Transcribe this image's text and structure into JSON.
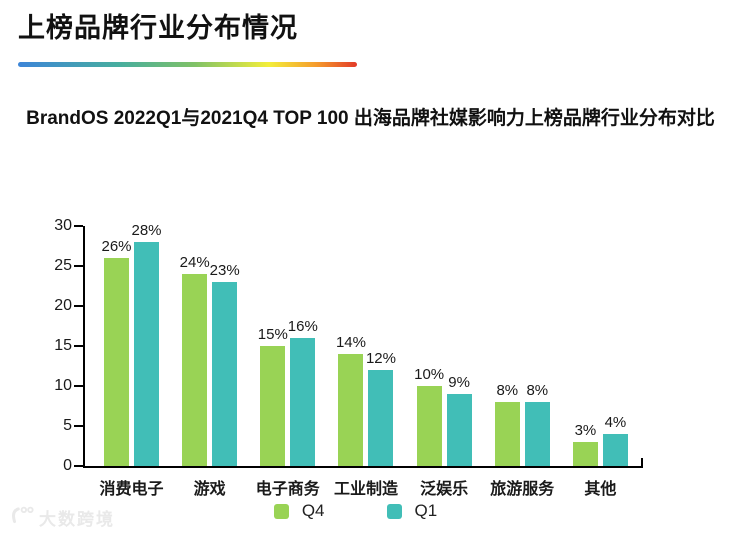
{
  "page": {
    "title": "上榜品牌行业分布情况",
    "subtitle": "BrandOS 2022Q1与2021Q4 TOP 100 出海品牌社媒影响力上榜品牌行业分布对比"
  },
  "colors": {
    "q4_green": "#99D355",
    "q1_teal": "#41BEB7",
    "axis": "#000000",
    "text": "#1A1A1A",
    "watermark_gray": "#E9E9E9",
    "divider_gradient": [
      "#3D85D8",
      "#47AE9E",
      "#7FC167",
      "#F3EE3A",
      "#F59B2C",
      "#E23A28"
    ]
  },
  "chart_data": {
    "type": "bar",
    "title": "BrandOS 2022Q1与2021Q4 TOP 100 出海品牌社媒影响力上榜品牌行业分布对比",
    "categories": [
      "消费电子",
      "游戏",
      "电子商务",
      "工业制造",
      "泛娱乐",
      "旅游服务",
      "其他"
    ],
    "series": [
      {
        "name": "Q4",
        "color": "#99D355",
        "values": [
          26,
          24,
          15,
          14,
          10,
          8,
          3
        ]
      },
      {
        "name": "Q1",
        "color": "#41BEB7",
        "values": [
          28,
          23,
          16,
          12,
          9,
          8,
          4
        ]
      }
    ],
    "value_suffix": "%",
    "data_labels": {
      "Q4": [
        "26%",
        "24%",
        "15%",
        "14%",
        "10%",
        "8%",
        "3%"
      ],
      "Q1": [
        "28%",
        "23%",
        "16%",
        "12%",
        "9%",
        "8%",
        "4%"
      ]
    },
    "xlabel": "",
    "ylabel": "",
    "ylim": [
      0,
      30
    ],
    "yticks": [
      0,
      5,
      10,
      15,
      20,
      25,
      30
    ],
    "grid": false,
    "legend_position": "bottom"
  },
  "watermark": {
    "text": "大数跨境"
  }
}
